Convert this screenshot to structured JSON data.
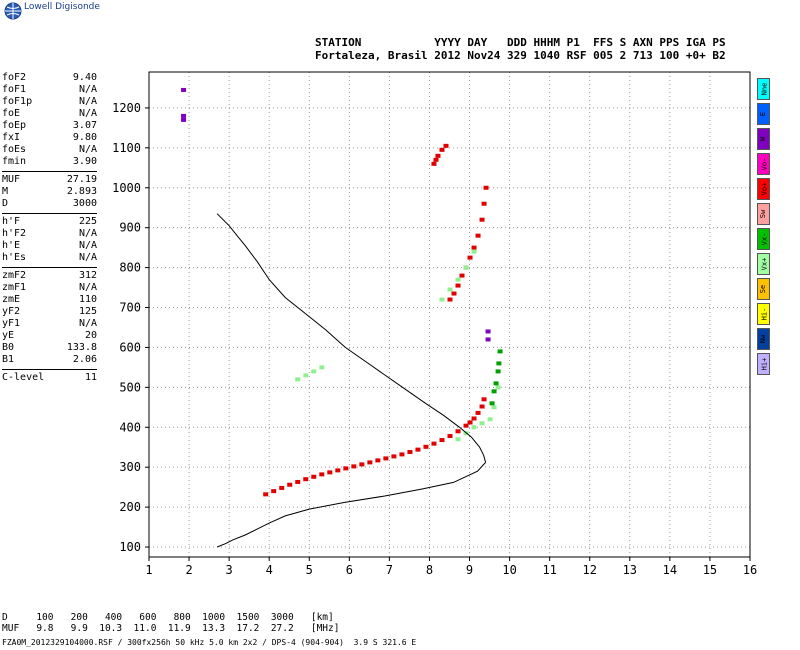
{
  "brand": {
    "text": "Lowell Digisonde"
  },
  "header": {
    "line1": "STATION           YYYY DAY   DDD HHHM P1  FFS S AXN PPS IGA PS",
    "line2": "Fortaleza, Brasil 2012 Nov24 329 1040 RSF 005 2 713 100 +0+ B2"
  },
  "params": {
    "group1": [
      {
        "label": "foF2",
        "value": "9.40"
      },
      {
        "label": "foF1",
        "value": "N/A"
      },
      {
        "label": "foF1p",
        "value": "N/A"
      },
      {
        "label": "foE",
        "value": "N/A"
      },
      {
        "label": "foEp",
        "value": "3.07"
      },
      {
        "label": "fxI",
        "value": "9.80"
      },
      {
        "label": "foEs",
        "value": "N/A"
      },
      {
        "label": "fmin",
        "value": "3.90"
      }
    ],
    "group2": [
      {
        "label": "MUF",
        "value": "27.19"
      },
      {
        "label": "M",
        "value": "2.893"
      },
      {
        "label": "D",
        "value": "3000"
      }
    ],
    "group3": [
      {
        "label": "h'F",
        "value": "225"
      },
      {
        "label": "h'F2",
        "value": "N/A"
      },
      {
        "label": "h'E",
        "value": "N/A"
      },
      {
        "label": "h'Es",
        "value": "N/A"
      }
    ],
    "group4": [
      {
        "label": "zmF2",
        "value": "312"
      },
      {
        "label": "zmF1",
        "value": "N/A"
      },
      {
        "label": "zmE",
        "value": "110"
      },
      {
        "label": "yF2",
        "value": "125"
      },
      {
        "label": "yF1",
        "value": "N/A"
      },
      {
        "label": "yE",
        "value": "20"
      },
      {
        "label": "B0",
        "value": "133.8"
      },
      {
        "label": "B1",
        "value": "2.06"
      }
    ],
    "group5": [
      {
        "label": "C-level",
        "value": "11"
      }
    ]
  },
  "legend": [
    {
      "label": "Nne",
      "color": "#00ffff"
    },
    {
      "label": "E",
      "color": "#0060ff"
    },
    {
      "label": "W",
      "color": "#8000c0"
    },
    {
      "label": "Vo-",
      "color": "#ff00c0"
    },
    {
      "label": "Vo+",
      "color": "#ff0000"
    },
    {
      "label": "Sw",
      "color": "#ffa0a0"
    },
    {
      "label": "Vx-",
      "color": "#00c000"
    },
    {
      "label": "Vx+",
      "color": "#a0ffa0"
    },
    {
      "label": "Se",
      "color": "#ffc000"
    },
    {
      "label": "Hi-",
      "color": "#ffff00"
    },
    {
      "label": "Nw",
      "color": "#0040a0"
    },
    {
      "label": "Hi+",
      "color": "#c0b0ff"
    }
  ],
  "muf_table": {
    "d_row": "D     100   200   400   600   800  1000  1500  3000   [km]",
    "muf_row": "MUF   9.8   9.9  10.3  11.0  11.9  13.3  17.2  27.2   [MHz]"
  },
  "footer": "FZA0M_2012329104000.RSF / 300fx256h 50 kHz 5.0 km 2x2 / DPS-4 (904-904)  3.9 S 321.6 E",
  "chart_data": {
    "type": "scatter",
    "xlim": [
      1,
      16
    ],
    "ylim": [
      75,
      1290
    ],
    "xticks": [
      1,
      2,
      3,
      4,
      5,
      6,
      7,
      8,
      9,
      10,
      11,
      12,
      13,
      14,
      15,
      16
    ],
    "yticks": [
      100,
      200,
      300,
      400,
      500,
      600,
      700,
      800,
      900,
      1000,
      1100,
      1200
    ],
    "grid": true,
    "profile": {
      "x": [
        9.4,
        9.35,
        9.25,
        9.05,
        8.75,
        8.35,
        7.9,
        7.4,
        6.9,
        6.4,
        5.9,
        5.4,
        4.9,
        4.4,
        4.0,
        3.7,
        3.4,
        3.2,
        3.0,
        2.8,
        2.7
      ],
      "y": [
        312,
        330,
        350,
        375,
        400,
        430,
        460,
        495,
        530,
        565,
        600,
        645,
        685,
        725,
        770,
        815,
        855,
        880,
        905,
        925,
        935
      ],
      "x_low": [
        9.4,
        9.2,
        8.6,
        7.8,
        6.9,
        5.9,
        5.0,
        4.4,
        4.0,
        3.7,
        3.4,
        3.1,
        2.9,
        2.7
      ],
      "y_low": [
        312,
        290,
        262,
        245,
        228,
        212,
        195,
        178,
        160,
        145,
        130,
        118,
        108,
        100
      ]
    },
    "series": [
      {
        "name": "Vo+",
        "color": "#e00000",
        "x": [
          3.9,
          4.1,
          4.3,
          4.5,
          4.7,
          4.9,
          5.1,
          5.3,
          5.5,
          5.7,
          5.9,
          6.1,
          6.3,
          6.5,
          6.7,
          6.9,
          7.1,
          7.3,
          7.5,
          7.7,
          7.9,
          8.1,
          8.3,
          8.5,
          8.7,
          8.9,
          9.0,
          9.1,
          9.2,
          9.3,
          9.35
        ],
        "y": [
          232,
          240,
          248,
          256,
          263,
          270,
          276,
          282,
          287,
          292,
          297,
          302,
          307,
          312,
          317,
          322,
          327,
          332,
          338,
          344,
          351,
          359,
          368,
          378,
          390,
          404,
          412,
          422,
          436,
          452,
          470
        ]
      },
      {
        "name": "Vo+",
        "color": "#e00000",
        "x": [
          8.1,
          8.15,
          8.2,
          8.3,
          8.4,
          8.5,
          8.6,
          8.7,
          8.8,
          8.9,
          9.0,
          9.1,
          9.2,
          9.3,
          9.35,
          9.4
        ],
        "y": [
          1060,
          1070,
          1080,
          1095,
          1105,
          720,
          735,
          755,
          780,
          800,
          825,
          850,
          880,
          920,
          960,
          1000
        ]
      },
      {
        "name": "Vx+",
        "color": "#90f090",
        "x": [
          8.7,
          8.9,
          9.1,
          9.3,
          9.5,
          9.6,
          9.7,
          8.3,
          8.5,
          8.7,
          8.9,
          9.1,
          4.7,
          4.9,
          5.1,
          5.3
        ],
        "y": [
          370,
          385,
          400,
          410,
          420,
          450,
          500,
          720,
          745,
          770,
          800,
          840,
          520,
          530,
          540,
          550
        ]
      },
      {
        "name": "Vx-",
        "color": "#00a000",
        "x": [
          9.55,
          9.6,
          9.65,
          9.7,
          9.72,
          9.75
        ],
        "y": [
          460,
          490,
          510,
          540,
          560,
          590
        ]
      },
      {
        "name": "W",
        "color": "#8000c0",
        "x": [
          1.85,
          1.85,
          1.85,
          9.45,
          9.45
        ],
        "y": [
          1245,
          1180,
          1170,
          640,
          620
        ]
      }
    ]
  }
}
